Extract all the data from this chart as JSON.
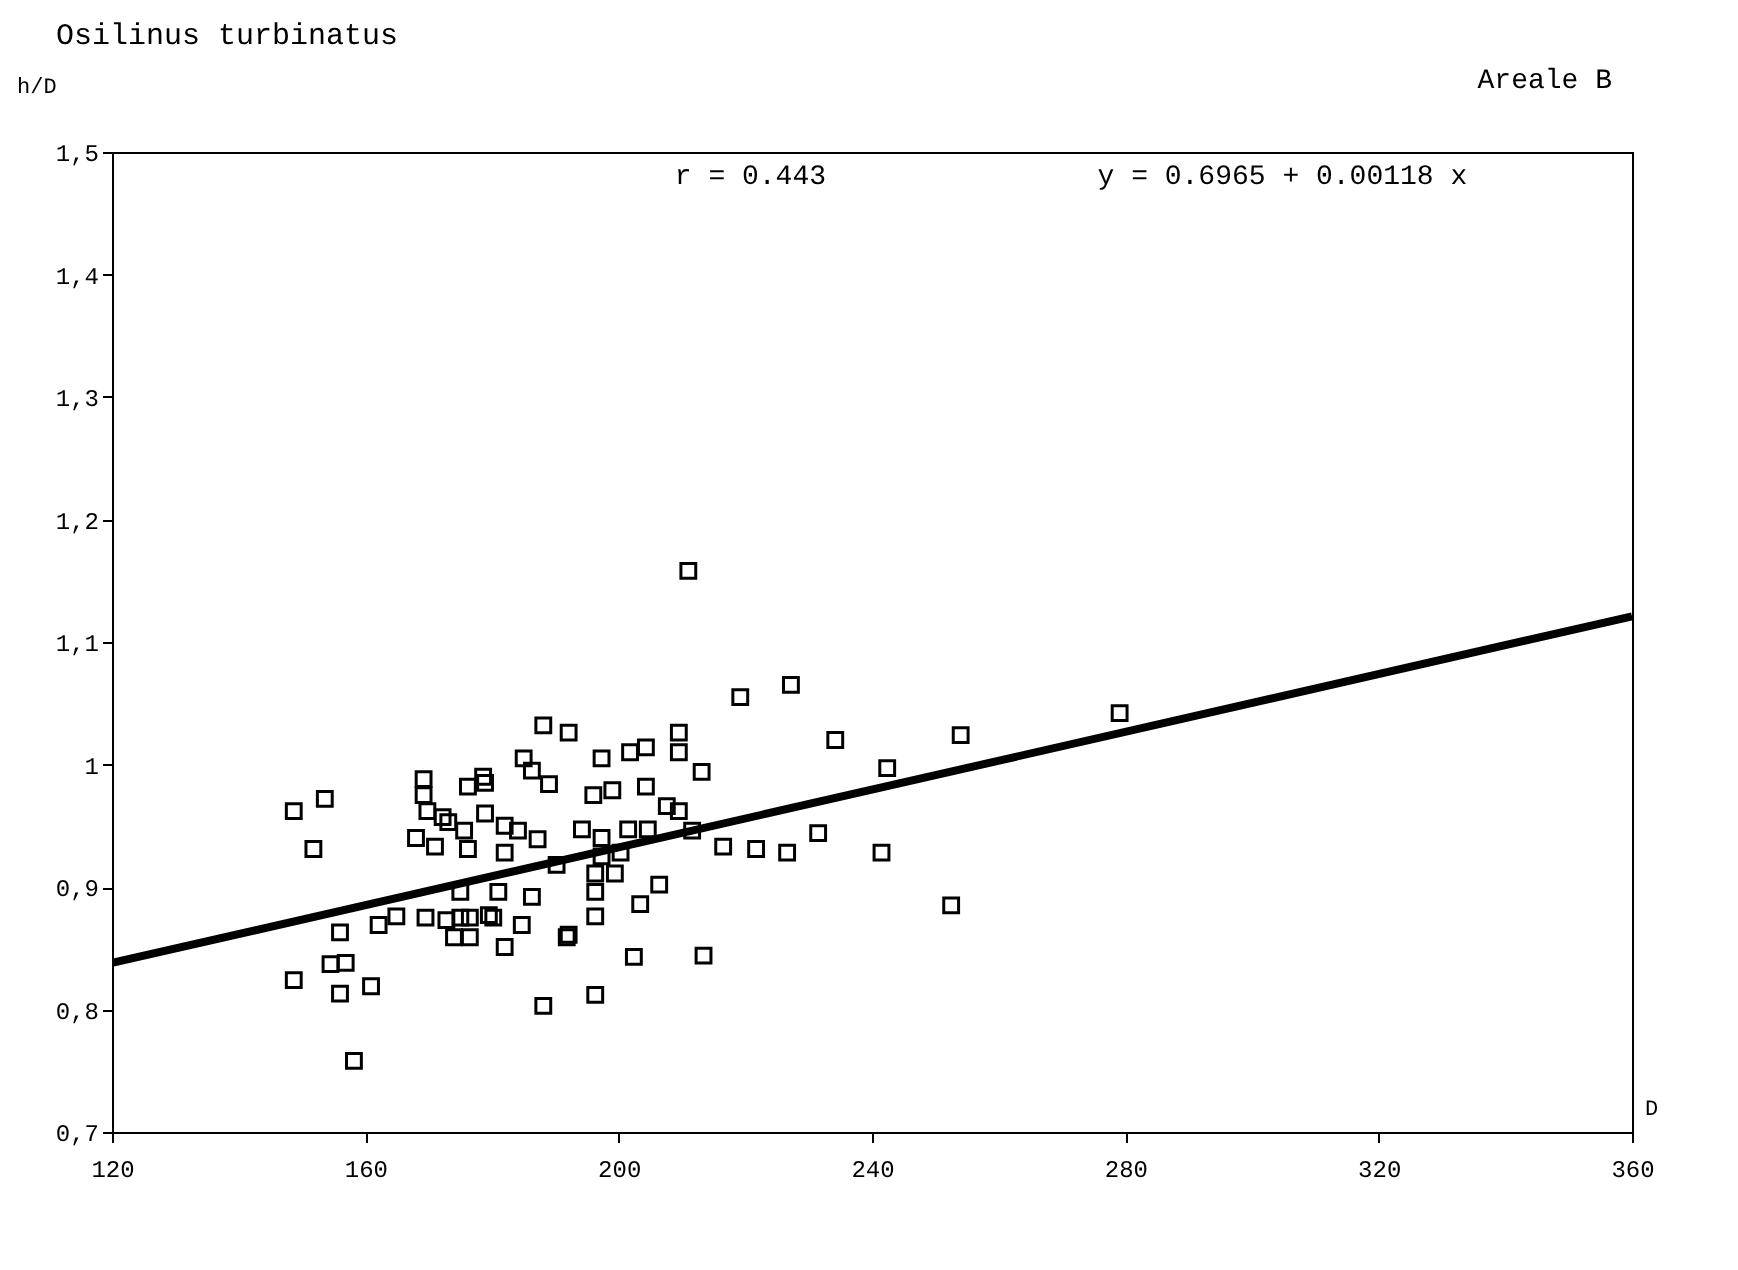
{
  "chart_data": {
    "type": "scatter",
    "title": "Osilinus turbinatus",
    "xlabel": "D",
    "ylabel": "h/D",
    "annotations": [
      "r = 0.443",
      "y = 0.6965 + 0.00118 x",
      "Areale B"
    ],
    "xlim": [
      120,
      360
    ],
    "xticks": [
      120,
      160,
      200,
      240,
      280,
      320,
      360
    ],
    "ylim": [
      0.7,
      1.5
    ],
    "yticks": [
      {
        "value": 0.7,
        "label": "0,7"
      },
      {
        "value": 0.8,
        "label": "0,8"
      },
      {
        "value": 0.9,
        "label": "0,9"
      },
      {
        "value": 1,
        "label": "1"
      },
      {
        "value": 1.1,
        "label": "1,1"
      },
      {
        "value": 1.2,
        "label": "1,2"
      },
      {
        "value": 1.3,
        "label": "1,3"
      },
      {
        "value": 1.4,
        "label": "1,4"
      },
      {
        "value": 1.5,
        "label": "1,5"
      }
    ],
    "grid": false,
    "series": [
      {
        "color": "#000000",
        "marker": "square",
        "x": [
          148.7,
          153.6,
          151.8,
          148.7,
          156,
          154.5,
          156.9,
          156,
          160.9,
          158.2,
          162.1,
          164.9,
          169.5,
          169.2,
          169.2,
          176.2,
          178.9,
          169.8,
          172.2,
          173.1,
          168,
          171,
          175.6,
          176.2,
          178.9,
          172.8,
          175,
          176.5,
          174,
          176.5,
          179.5,
          175,
          178.6,
          211,
          219.2,
          188.1,
          192.1,
          209.5,
          209.5,
          204.3,
          201.8,
          185,
          186.3,
          189,
          197.3,
          213.1,
          196,
          199,
          204.3,
          207.6,
          209.5,
          182,
          184.1,
          187.2,
          194.2,
          197.3,
          201.5,
          204.6,
          211.6,
          216.5,
          221.7,
          182,
          190.2,
          197.3,
          200.3,
          196.3,
          199.4,
          196.3,
          181,
          206.4,
          203.4,
          186.3,
          180.2,
          184.7,
          182,
          196.3,
          191.8,
          192.1,
          202.4,
          213.4,
          188.1,
          196.3,
          227.2,
          234.2,
          254,
          242.4,
          279.1,
          226.6,
          231.5,
          241.5,
          252.5
        ],
        "values": [
          0.962,
          0.972,
          0.931,
          0.824,
          0.863,
          0.837,
          0.838,
          0.813,
          0.819,
          0.758,
          0.869,
          0.876,
          0.875,
          0.988,
          0.975,
          0.982,
          0.985,
          0.962,
          0.957,
          0.953,
          0.94,
          0.933,
          0.946,
          0.931,
          0.96,
          0.873,
          0.875,
          0.875,
          0.859,
          0.859,
          0.877,
          0.896,
          0.99,
          1.158,
          1.055,
          1.032,
          1.026,
          1.026,
          1.01,
          1.014,
          1.01,
          1.005,
          0.995,
          0.984,
          1.005,
          0.994,
          0.975,
          0.979,
          0.982,
          0.966,
          0.962,
          0.95,
          0.946,
          0.939,
          0.947,
          0.94,
          0.947,
          0.947,
          0.946,
          0.933,
          0.931,
          0.928,
          0.918,
          0.925,
          0.928,
          0.911,
          0.911,
          0.896,
          0.896,
          0.902,
          0.886,
          0.892,
          0.875,
          0.869,
          0.851,
          0.876,
          0.859,
          0.861,
          0.843,
          0.844,
          0.803,
          0.812,
          1.065,
          1.02,
          1.024,
          0.997,
          1.042,
          0.928,
          0.944,
          0.928,
          0.885
        ]
      },
      {
        "type": "line",
        "color": "#000000",
        "marker": "none",
        "x": [
          120,
          360
        ],
        "values": [
          0.838,
          1.121
        ]
      }
    ]
  }
}
